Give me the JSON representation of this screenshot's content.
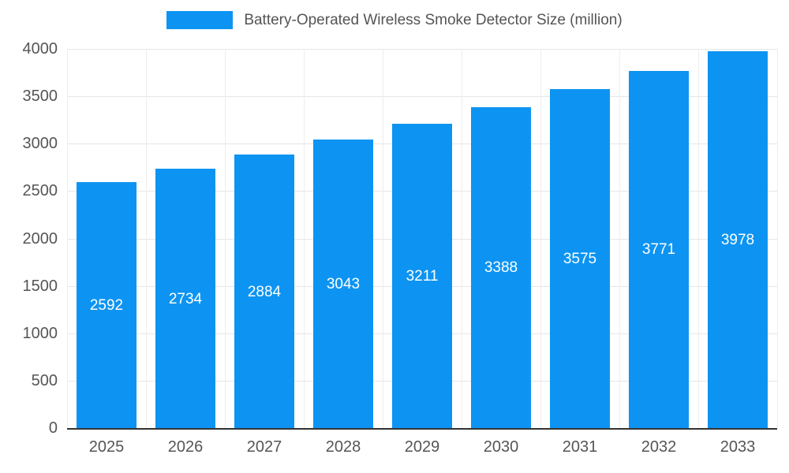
{
  "chart_data": {
    "type": "bar",
    "title": "Battery-Operated Wireless Smoke Detector Size (million)",
    "categories": [
      "2025",
      "2026",
      "2027",
      "2028",
      "2029",
      "2030",
      "2031",
      "2032",
      "2033"
    ],
    "values": [
      2592,
      2734,
      2884,
      3043,
      3211,
      3388,
      3575,
      3771,
      3978
    ],
    "yticks": [
      0,
      500,
      1000,
      1500,
      2000,
      2500,
      3000,
      3500,
      4000
    ],
    "ylim": [
      0,
      4000
    ],
    "grid": true,
    "legend_position": "top",
    "bar_color": "#0d94f2",
    "bar_label_color": "#ffffff",
    "axis_text_color": "#555555",
    "gridline_color": "#e6e6e6",
    "baseline_color": "#333333"
  }
}
